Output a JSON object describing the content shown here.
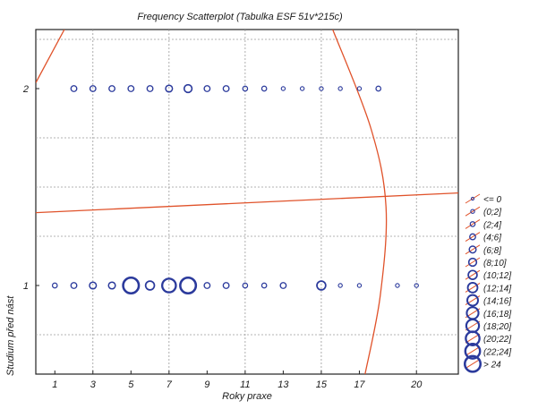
{
  "chart_data": {
    "type": "scatter",
    "title": "Frequency Scatterplot (Tabulka ESF 51v*215c)",
    "xlabel": "Roky praxe",
    "ylabel": "Studium před nást",
    "x_ticks": [
      1,
      3,
      5,
      7,
      9,
      11,
      13,
      15,
      17,
      20
    ],
    "y_ticks": [
      1,
      2
    ],
    "xlim": [
      0,
      22.2
    ],
    "ylim": [
      0.55,
      2.3
    ],
    "grid": true,
    "legend_placement": "right",
    "legend": [
      "<= 0",
      "(0;2]",
      "(2;4]",
      "(4;6]",
      "(6;8]",
      "(8;10]",
      "(10;12]",
      "(12;14]",
      "(14;16]",
      "(16;18]",
      "(18;20]",
      "(20;22]",
      "(22;24]",
      "> 24"
    ],
    "points": [
      {
        "x": 2,
        "y": 2,
        "bin": 3
      },
      {
        "x": 3,
        "y": 2,
        "bin": 3
      },
      {
        "x": 4,
        "y": 2,
        "bin": 3
      },
      {
        "x": 5,
        "y": 2,
        "bin": 3
      },
      {
        "x": 6,
        "y": 2,
        "bin": 3
      },
      {
        "x": 7,
        "y": 2,
        "bin": 4
      },
      {
        "x": 8,
        "y": 2,
        "bin": 5
      },
      {
        "x": 9,
        "y": 2,
        "bin": 3
      },
      {
        "x": 10,
        "y": 2,
        "bin": 3
      },
      {
        "x": 11,
        "y": 2,
        "bin": 2
      },
      {
        "x": 12,
        "y": 2,
        "bin": 2
      },
      {
        "x": 13,
        "y": 2,
        "bin": 1
      },
      {
        "x": 14,
        "y": 2,
        "bin": 1
      },
      {
        "x": 15,
        "y": 2,
        "bin": 1
      },
      {
        "x": 16,
        "y": 2,
        "bin": 1
      },
      {
        "x": 17,
        "y": 2,
        "bin": 1
      },
      {
        "x": 18,
        "y": 2,
        "bin": 2
      },
      {
        "x": 1,
        "y": 1,
        "bin": 2
      },
      {
        "x": 2,
        "y": 1,
        "bin": 3
      },
      {
        "x": 3,
        "y": 1,
        "bin": 4
      },
      {
        "x": 4,
        "y": 1,
        "bin": 4
      },
      {
        "x": 5,
        "y": 1,
        "bin": 13
      },
      {
        "x": 6,
        "y": 1,
        "bin": 6
      },
      {
        "x": 7,
        "y": 1,
        "bin": 11
      },
      {
        "x": 8,
        "y": 1,
        "bin": 13
      },
      {
        "x": 9,
        "y": 1,
        "bin": 3
      },
      {
        "x": 10,
        "y": 1,
        "bin": 3
      },
      {
        "x": 11,
        "y": 1,
        "bin": 2
      },
      {
        "x": 12,
        "y": 1,
        "bin": 2
      },
      {
        "x": 13,
        "y": 1,
        "bin": 3
      },
      {
        "x": 15,
        "y": 1,
        "bin": 6
      },
      {
        "x": 16,
        "y": 1,
        "bin": 1
      },
      {
        "x": 17,
        "y": 1,
        "bin": 1
      },
      {
        "x": 19,
        "y": 1,
        "bin": 1
      },
      {
        "x": 20,
        "y": 1,
        "bin": 1
      }
    ],
    "fit_lines": [
      {
        "shape": "line",
        "points": [
          [
            0,
            1.37
          ],
          [
            22.2,
            1.47
          ]
        ]
      },
      {
        "shape": "curve",
        "points": [
          [
            1.5,
            2.3
          ],
          [
            0,
            2.03
          ]
        ]
      },
      {
        "shape": "curve",
        "points": [
          [
            15.6,
            2.3
          ],
          [
            17.6,
            1.8
          ],
          [
            18.4,
            1.4
          ],
          [
            18.1,
            0.95
          ],
          [
            17.3,
            0.55
          ]
        ]
      }
    ],
    "colors": {
      "marker": "#2b3a9c",
      "fit": "#e0522a",
      "grid": "#9a9a9a",
      "axis": "#222222"
    }
  }
}
